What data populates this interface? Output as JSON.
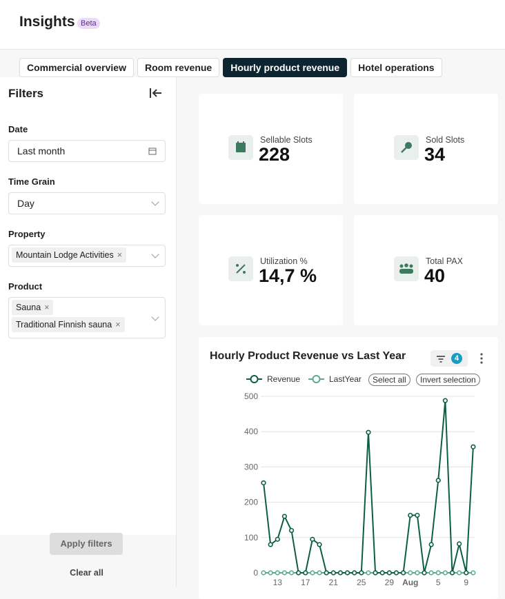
{
  "header": {
    "title": "Insights",
    "badge": "Beta"
  },
  "tabs": {
    "items": [
      "Commercial overview",
      "Room revenue",
      "Hourly product revenue",
      "Hotel operations"
    ],
    "active": 2
  },
  "filters": {
    "title": "Filters",
    "date": {
      "label": "Date",
      "value": "Last month"
    },
    "grain": {
      "label": "Time Grain",
      "value": "Day"
    },
    "property": {
      "label": "Property",
      "chips": [
        "Mountain Lodge Activities"
      ]
    },
    "product": {
      "label": "Product",
      "chips": [
        "Sauna",
        "Traditional Finnish sauna"
      ]
    },
    "apply": "Apply filters",
    "clear": "Clear all"
  },
  "kpis": [
    {
      "label": "Sellable Slots",
      "value": "228"
    },
    {
      "label": "Sold Slots",
      "value": "34"
    },
    {
      "label": "Utilization %",
      "value": "14,7 %"
    },
    {
      "label": "Total PAX",
      "value": "40"
    }
  ],
  "chart_toolbar": {
    "filter_count": 4,
    "select_all": "Select all",
    "invert": "Invert selection"
  },
  "chart_data": {
    "type": "line",
    "title": "Hourly Product Revenue vs Last Year",
    "categories": [
      null,
      null,
      "13",
      null,
      null,
      null,
      "17",
      null,
      null,
      null,
      "21",
      null,
      null,
      null,
      "25",
      null,
      null,
      null,
      "29",
      null,
      null,
      "Aug",
      null,
      null,
      null,
      "5",
      null,
      null,
      null,
      "9",
      null
    ],
    "series": [
      {
        "name": "Revenue",
        "color": "#0b5e45",
        "values": [
          255,
          80,
          95,
          160,
          120,
          0,
          0,
          95,
          80,
          0,
          0,
          0,
          0,
          0,
          0,
          398,
          0,
          0,
          0,
          0,
          0,
          163,
          163,
          0,
          80,
          262,
          488,
          0,
          82,
          0,
          357
        ]
      },
      {
        "name": "LastYear",
        "color": "#5aab8c",
        "values": [
          0,
          0,
          0,
          0,
          0,
          0,
          0,
          0,
          0,
          0,
          0,
          0,
          0,
          0,
          0,
          0,
          0,
          0,
          0,
          0,
          0,
          0,
          0,
          0,
          0,
          0,
          0,
          0,
          0,
          0,
          0
        ]
      }
    ],
    "ylim": [
      0,
      500
    ],
    "yticks": [
      0,
      100,
      200,
      300,
      400,
      500
    ],
    "grid": true
  }
}
